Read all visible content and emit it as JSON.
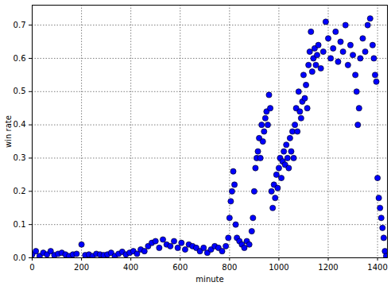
{
  "chart_data": {
    "type": "scatter",
    "xlabel": "minute",
    "ylabel": "win rate",
    "color": "#0000ff",
    "marker": "circle",
    "grid": true,
    "xlim": [
      0,
      1440
    ],
    "ylim": [
      0,
      0.76
    ],
    "xticks": [
      0,
      200,
      400,
      600,
      800,
      1000,
      1200,
      1400
    ],
    "yticks": [
      {
        "value": 0,
        "label": "0.0"
      },
      {
        "value": 0.1,
        "label": "0.1"
      },
      {
        "value": 0.2,
        "label": "0.2"
      },
      {
        "value": 0.3,
        "label": "0.3"
      },
      {
        "value": 0.4,
        "label": "0.4"
      },
      {
        "value": 0.5,
        "label": "0.5"
      },
      {
        "value": 0.6,
        "label": "0.6"
      },
      {
        "value": 0.7,
        "label": "0.7"
      }
    ],
    "x": [
      0,
      15,
      30,
      45,
      60,
      75,
      90,
      105,
      120,
      135,
      150,
      165,
      180,
      200,
      215,
      230,
      245,
      260,
      275,
      290,
      305,
      320,
      335,
      350,
      365,
      380,
      395,
      410,
      425,
      440,
      455,
      470,
      485,
      500,
      515,
      530,
      545,
      560,
      575,
      590,
      605,
      620,
      635,
      650,
      665,
      680,
      695,
      710,
      725,
      740,
      755,
      770,
      785,
      795,
      800,
      805,
      810,
      815,
      820,
      825,
      830,
      840,
      850,
      860,
      870,
      880,
      890,
      895,
      900,
      905,
      910,
      915,
      920,
      925,
      930,
      935,
      940,
      945,
      950,
      955,
      960,
      965,
      970,
      975,
      980,
      985,
      990,
      995,
      1000,
      1005,
      1010,
      1015,
      1020,
      1025,
      1030,
      1035,
      1040,
      1045,
      1050,
      1055,
      1060,
      1065,
      1070,
      1075,
      1080,
      1085,
      1090,
      1095,
      1100,
      1105,
      1110,
      1115,
      1120,
      1125,
      1130,
      1135,
      1140,
      1145,
      1150,
      1155,
      1160,
      1170,
      1180,
      1190,
      1200,
      1210,
      1220,
      1230,
      1240,
      1250,
      1260,
      1270,
      1280,
      1290,
      1300,
      1310,
      1315,
      1320,
      1325,
      1330,
      1340,
      1350,
      1360,
      1370,
      1380,
      1385,
      1390,
      1395,
      1400,
      1405,
      1410,
      1415,
      1420,
      1425,
      1430,
      1435
    ],
    "values": [
      0.01,
      0.02,
      0.005,
      0.015,
      0.01,
      0.02,
      0.008,
      0.012,
      0.015,
      0.01,
      0.005,
      0.01,
      0.012,
      0.04,
      0.008,
      0.01,
      0.005,
      0.012,
      0.01,
      0.008,
      0.01,
      0.015,
      0.005,
      0.012,
      0.018,
      0.01,
      0.015,
      0.02,
      0.012,
      0.025,
      0.02,
      0.035,
      0.045,
      0.05,
      0.03,
      0.055,
      0.04,
      0.035,
      0.05,
      0.03,
      0.045,
      0.025,
      0.04,
      0.035,
      0.03,
      0.02,
      0.03,
      0.015,
      0.025,
      0.035,
      0.03,
      0.02,
      0.035,
      0.06,
      0.12,
      0.17,
      0.2,
      0.26,
      0.22,
      0.1,
      0.06,
      0.05,
      0.04,
      0.03,
      0.05,
      0.04,
      0.08,
      0.12,
      0.2,
      0.27,
      0.3,
      0.32,
      0.36,
      0.3,
      0.4,
      0.35,
      0.38,
      0.42,
      0.44,
      0.4,
      0.49,
      0.45,
      0.2,
      0.15,
      0.22,
      0.18,
      0.25,
      0.21,
      0.27,
      0.3,
      0.24,
      0.29,
      0.32,
      0.28,
      0.34,
      0.3,
      0.27,
      0.36,
      0.32,
      0.38,
      0.3,
      0.4,
      0.45,
      0.38,
      0.5,
      0.44,
      0.42,
      0.47,
      0.55,
      0.48,
      0.52,
      0.45,
      0.58,
      0.62,
      0.68,
      0.56,
      0.6,
      0.63,
      0.58,
      0.61,
      0.64,
      0.57,
      0.62,
      0.71,
      0.66,
      0.6,
      0.63,
      0.68,
      0.59,
      0.65,
      0.62,
      0.7,
      0.58,
      0.64,
      0.61,
      0.55,
      0.5,
      0.4,
      0.45,
      0.6,
      0.66,
      0.62,
      0.7,
      0.72,
      0.64,
      0.6,
      0.55,
      0.53,
      0.24,
      0.18,
      0.15,
      0.12,
      0.09,
      0.06,
      0.02,
      0.005
    ]
  }
}
